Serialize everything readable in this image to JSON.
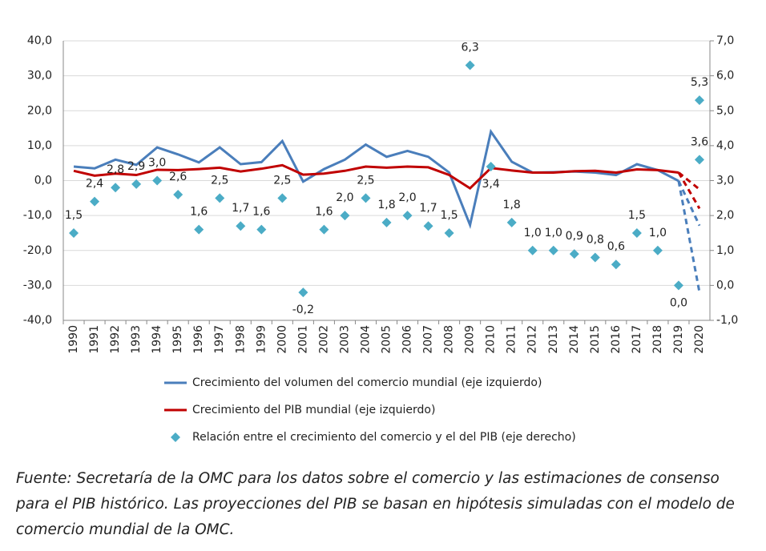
{
  "chart_data": {
    "type": "line",
    "categories": [
      "1990",
      "1991",
      "1992",
      "1993",
      "1994",
      "1995",
      "1996",
      "1997",
      "1998",
      "1999",
      "2000",
      "2001",
      "2002",
      "2003",
      "2004",
      "2005",
      "2006",
      "2007",
      "2008",
      "2009",
      "2010",
      "2011",
      "2012",
      "2013",
      "2014",
      "2015",
      "2016",
      "2017",
      "2018",
      "2019",
      "2020"
    ],
    "ylim": [
      -40,
      40
    ],
    "yticks": [
      {
        "value": -40,
        "label": "-40,0"
      },
      {
        "value": -30,
        "label": "-30,0"
      },
      {
        "value": -20,
        "label": "-20,0"
      },
      {
        "value": -10,
        "label": "-10,0"
      },
      {
        "value": 0,
        "label": "0,0"
      },
      {
        "value": 10,
        "label": "10,0"
      },
      {
        "value": 20,
        "label": "20,0"
      },
      {
        "value": 30,
        "label": "30,0"
      },
      {
        "value": 40,
        "label": "40,0"
      }
    ],
    "y2lim": [
      -1,
      7
    ],
    "y2ticks": [
      {
        "value": -1,
        "label": "-1,0"
      },
      {
        "value": 0,
        "label": "0,0"
      },
      {
        "value": 1,
        "label": "1,0"
      },
      {
        "value": 2,
        "label": "2,0"
      },
      {
        "value": 3,
        "label": "3,0"
      },
      {
        "value": 4,
        "label": "4,0"
      },
      {
        "value": 5,
        "label": "5,0"
      },
      {
        "value": 6,
        "label": "6,0"
      },
      {
        "value": 7,
        "label": "7,0"
      }
    ],
    "grid": true,
    "series": [
      {
        "name": "Crecimiento del volumen del comercio mundial (eje izquierdo)",
        "color": "#4a7ebb",
        "kind": "line",
        "values": [
          4.0,
          3.5,
          6.0,
          4.5,
          9.5,
          7.5,
          5.2,
          9.5,
          4.7,
          5.3,
          11.3,
          -0.3,
          3.3,
          6.0,
          10.3,
          6.8,
          8.5,
          6.8,
          2.3,
          -12.7,
          14.0,
          5.4,
          2.3,
          2.4,
          2.6,
          2.3,
          1.6,
          4.7,
          3.0,
          -0.1,
          null
        ]
      },
      {
        "color": "#4a7ebb",
        "kind": "line",
        "dashed": true,
        "values": [
          null,
          null,
          null,
          null,
          null,
          null,
          null,
          null,
          null,
          null,
          null,
          null,
          null,
          null,
          null,
          null,
          null,
          null,
          null,
          null,
          null,
          null,
          null,
          null,
          null,
          null,
          null,
          null,
          null,
          -0.1,
          -12.9
        ]
      },
      {
        "color": "#4a7ebb",
        "kind": "line",
        "dashed": true,
        "values": [
          null,
          null,
          null,
          null,
          null,
          null,
          null,
          null,
          null,
          null,
          null,
          null,
          null,
          null,
          null,
          null,
          null,
          null,
          null,
          null,
          null,
          null,
          null,
          null,
          null,
          null,
          null,
          null,
          null,
          -0.1,
          -32.0
        ]
      },
      {
        "name": "Crecimiento del PIB mundial (eje izquierdo)",
        "color": "#c00000",
        "kind": "line",
        "values": [
          2.8,
          1.4,
          2.0,
          1.6,
          3.1,
          3.0,
          3.3,
          3.7,
          2.6,
          3.4,
          4.4,
          1.7,
          2.0,
          2.8,
          4.0,
          3.7,
          4.0,
          3.8,
          1.6,
          -2.2,
          3.6,
          2.9,
          2.3,
          2.3,
          2.7,
          2.8,
          2.3,
          3.2,
          3.0,
          2.3,
          null
        ]
      },
      {
        "color": "#c00000",
        "kind": "line",
        "dashed": true,
        "values": [
          null,
          null,
          null,
          null,
          null,
          null,
          null,
          null,
          null,
          null,
          null,
          null,
          null,
          null,
          null,
          null,
          null,
          null,
          null,
          null,
          null,
          null,
          null,
          null,
          null,
          null,
          null,
          null,
          null,
          2.3,
          -2.5
        ]
      },
      {
        "color": "#c00000",
        "kind": "line",
        "dashed": true,
        "values": [
          null,
          null,
          null,
          null,
          null,
          null,
          null,
          null,
          null,
          null,
          null,
          null,
          null,
          null,
          null,
          null,
          null,
          null,
          null,
          null,
          null,
          null,
          null,
          null,
          null,
          null,
          null,
          null,
          null,
          2.3,
          -8.0
        ]
      },
      {
        "name": "Relación entre el crecimiento del comercio y el del PIB (eje derecho)",
        "color": "#4bacc6",
        "kind": "scatter",
        "axis": "y2",
        "values": [
          1.5,
          2.4,
          2.8,
          2.9,
          3.0,
          2.6,
          1.6,
          2.5,
          1.7,
          1.6,
          2.5,
          -0.2,
          1.6,
          2.0,
          2.5,
          1.8,
          2.0,
          1.7,
          1.5,
          6.3,
          3.4,
          1.8,
          1.0,
          1.0,
          0.9,
          0.8,
          0.6,
          1.5,
          1.0,
          0.0,
          5.3
        ],
        "value_labels": [
          "1,5",
          "2,4",
          "2,8",
          "2,9",
          "3,0",
          "2,6",
          "1,6",
          "2,5",
          "1,7",
          "1,6",
          "2,5",
          "-0,2",
          "1,6",
          "2,0",
          "2,5",
          "1,8",
          "2,0",
          "1,7",
          "1,5",
          "6,3",
          "3,4",
          "1,8",
          "1,0",
          "1,0",
          "0,9",
          "0,8",
          "0,6",
          "1,5",
          "1,0",
          "0,0",
          "5,3"
        ]
      },
      {
        "color": "#4bacc6",
        "kind": "scatter",
        "axis": "y2",
        "values": [
          null,
          null,
          null,
          null,
          null,
          null,
          null,
          null,
          null,
          null,
          null,
          null,
          null,
          null,
          null,
          null,
          null,
          null,
          null,
          null,
          null,
          null,
          null,
          null,
          null,
          null,
          null,
          null,
          null,
          null,
          3.6
        ],
        "value_labels": [
          null,
          null,
          null,
          null,
          null,
          null,
          null,
          null,
          null,
          null,
          null,
          null,
          null,
          null,
          null,
          null,
          null,
          null,
          null,
          null,
          null,
          null,
          null,
          null,
          null,
          null,
          null,
          null,
          null,
          null,
          "3,6"
        ]
      }
    ]
  },
  "source": [
    "Fuente: Secretaría de la OMC para los datos sobre el comercio y las estimaciones de consenso",
    "para el PIB histórico. Las proyecciones del PIB se basan en hipótesis simuladas con el modelo de",
    "comercio mundial de la OMC."
  ]
}
